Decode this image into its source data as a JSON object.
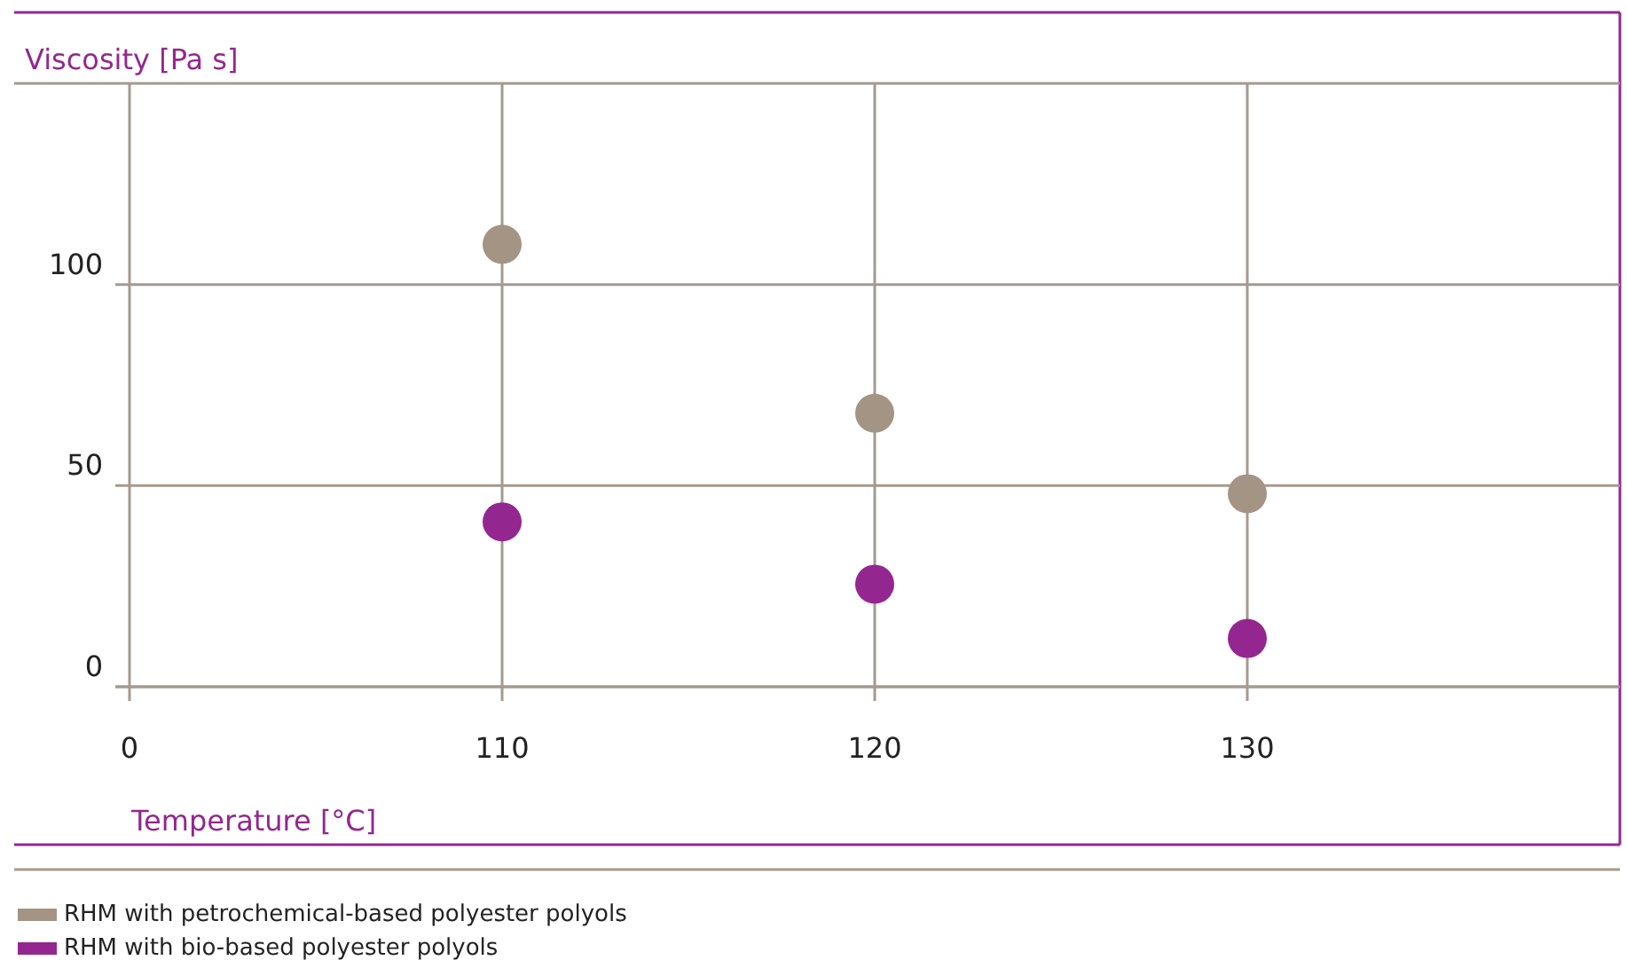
{
  "chart_data": {
    "type": "scatter",
    "xlabel": "Temperature [°C]",
    "ylabel": "Viscosity [Pa s]",
    "categories": [
      "0",
      "110",
      "120",
      "130"
    ],
    "series": [
      {
        "name": "RHM with petrochemical-based polyester polyols",
        "color": "#a39483",
        "values": [
          null,
          110,
          68,
          48
        ]
      },
      {
        "name": "RHM with bio-based polyester polyols",
        "color": "#93278f",
        "values": [
          null,
          41,
          25.5,
          12
        ]
      }
    ],
    "ylim": [
      0,
      150
    ],
    "yticks": [
      0,
      50,
      100,
      {
        "value": 150,
        "label": null
      }
    ],
    "grid": true,
    "legend": "bottom left",
    "marker": "circle"
  }
}
